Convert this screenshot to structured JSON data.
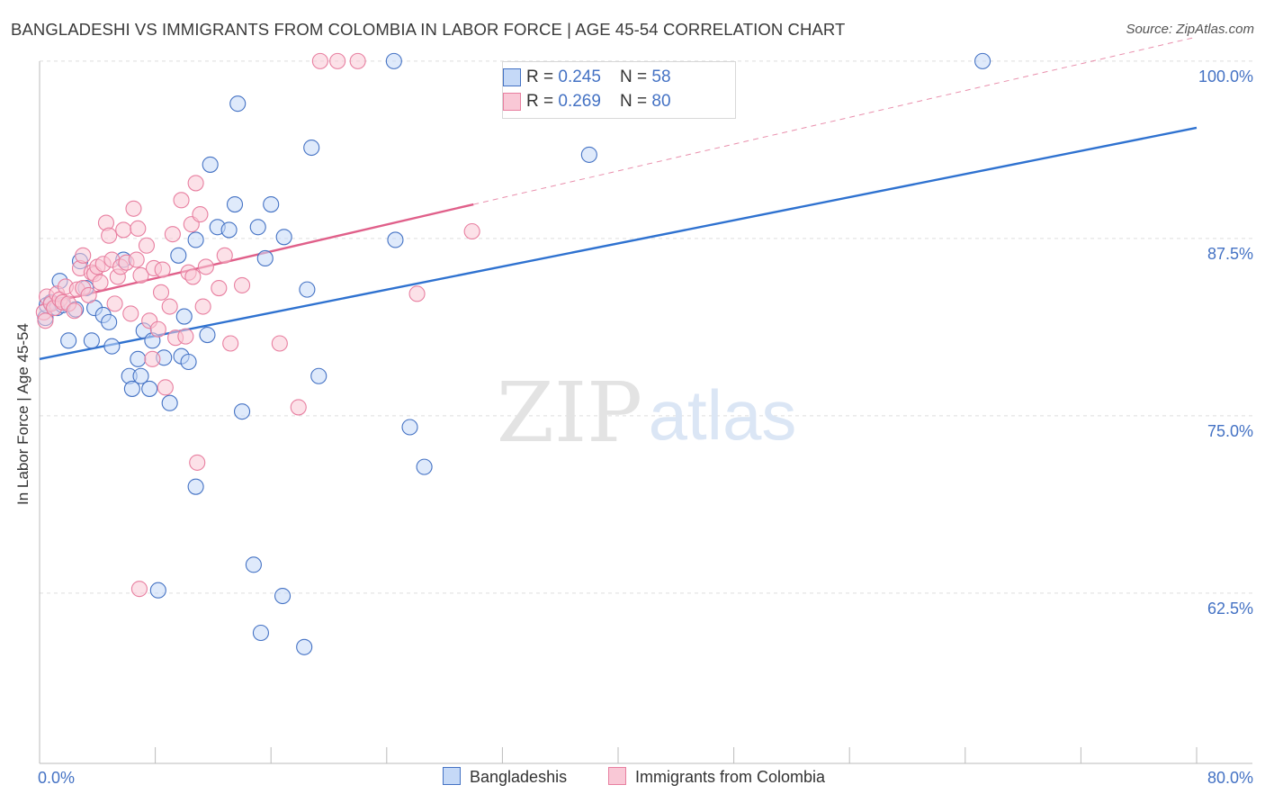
{
  "header": {
    "title": "BANGLADESHI VS IMMIGRANTS FROM COLOMBIA IN LABOR FORCE | AGE 45-54 CORRELATION CHART",
    "source": "Source: ZipAtlas.com"
  },
  "colors": {
    "blue": "#4472c4",
    "blue_fill": "#c5d9f7",
    "blue_line": "#2f72d0",
    "pink": "#e87fa0",
    "pink_fill": "#f9c8d6",
    "pink_line": "#e0608a",
    "axis_text": "#4472c4",
    "grid": "#dddddd"
  },
  "watermark": {
    "zip": "ZIP",
    "atlas": "atlas"
  },
  "legend": {
    "rows": [
      {
        "r_label": "R = ",
        "r_value": "0.245",
        "n_label": "N = ",
        "n_value": "58",
        "series": "blue"
      },
      {
        "r_label": "R = ",
        "r_value": "0.269",
        "n_label": "N = ",
        "n_value": "80",
        "series": "pink"
      }
    ]
  },
  "bottom_legend": [
    "Bangladeshis",
    "Immigrants from Colombia"
  ],
  "chart_data": {
    "type": "scatter",
    "title": "BANGLADESHI VS IMMIGRANTS FROM COLOMBIA IN LABOR FORCE | AGE 45-54 CORRELATION CHART",
    "xlabel": "",
    "ylabel": "In Labor Force | Age 45-54",
    "xlim": [
      0,
      80
    ],
    "ylim": [
      50.5,
      100.5
    ],
    "x_tick_labels": [
      "0.0%",
      "80.0%"
    ],
    "y_ticks": [
      62.5,
      75.0,
      87.5,
      100.0
    ],
    "y_tick_labels": [
      "62.5%",
      "75.0%",
      "87.5%",
      "100.0%"
    ],
    "legend_position": "top-center",
    "series": [
      {
        "name": "Bangladeshis",
        "color": "blue",
        "trend": {
          "x": [
            0,
            80
          ],
          "y": [
            79.0,
            95.3
          ],
          "dashed_extension": false
        },
        "points": [
          [
            0.4,
            81.9
          ],
          [
            0.5,
            82.8
          ],
          [
            0.8,
            83.0
          ],
          [
            1.2,
            82.6
          ],
          [
            1.4,
            84.5
          ],
          [
            1.6,
            82.8
          ],
          [
            2.0,
            80.3
          ],
          [
            2.5,
            82.5
          ],
          [
            2.8,
            85.9
          ],
          [
            3.2,
            84.0
          ],
          [
            3.6,
            80.3
          ],
          [
            3.8,
            82.6
          ],
          [
            4.4,
            82.1
          ],
          [
            4.8,
            81.6
          ],
          [
            5.0,
            79.9
          ],
          [
            5.8,
            86.0
          ],
          [
            6.2,
            77.8
          ],
          [
            6.4,
            76.9
          ],
          [
            6.8,
            79.0
          ],
          [
            7.0,
            77.8
          ],
          [
            7.2,
            81.0
          ],
          [
            7.6,
            76.9
          ],
          [
            7.8,
            80.3
          ],
          [
            8.2,
            62.7
          ],
          [
            8.6,
            79.1
          ],
          [
            9.0,
            75.9
          ],
          [
            9.6,
            86.3
          ],
          [
            9.8,
            79.2
          ],
          [
            10.0,
            82.0
          ],
          [
            10.3,
            78.8
          ],
          [
            10.8,
            87.4
          ],
          [
            10.8,
            70.0
          ],
          [
            11.6,
            80.7
          ],
          [
            11.8,
            92.7
          ],
          [
            12.3,
            88.3
          ],
          [
            13.1,
            88.1
          ],
          [
            13.5,
            89.9
          ],
          [
            13.7,
            97.0
          ],
          [
            14.0,
            75.3
          ],
          [
            14.8,
            64.5
          ],
          [
            15.1,
            88.3
          ],
          [
            15.3,
            59.7
          ],
          [
            15.6,
            86.1
          ],
          [
            16.0,
            89.9
          ],
          [
            16.8,
            62.3
          ],
          [
            16.9,
            87.6
          ],
          [
            18.3,
            58.7
          ],
          [
            18.5,
            83.9
          ],
          [
            18.8,
            93.9
          ],
          [
            19.3,
            77.8
          ],
          [
            24.5,
            100.0
          ],
          [
            24.6,
            87.4
          ],
          [
            25.6,
            74.2
          ],
          [
            26.6,
            71.4
          ],
          [
            38.0,
            93.4
          ],
          [
            65.2,
            100.0
          ]
        ]
      },
      {
        "name": "Immigrants from Colombia",
        "color": "pink",
        "trend": {
          "x": [
            0,
            30
          ],
          "y": [
            82.8,
            89.9
          ],
          "dashed_extension": true,
          "dashed_to": {
            "x": [
              30,
              80
            ],
            "y": [
              89.9,
              101.7
            ]
          }
        },
        "points": [
          [
            0.3,
            82.3
          ],
          [
            0.4,
            81.7
          ],
          [
            0.5,
            83.4
          ],
          [
            0.8,
            82.9
          ],
          [
            1.0,
            82.6
          ],
          [
            1.2,
            83.6
          ],
          [
            1.4,
            83.2
          ],
          [
            1.6,
            83.0
          ],
          [
            1.8,
            84.1
          ],
          [
            2.0,
            82.9
          ],
          [
            2.4,
            82.4
          ],
          [
            2.6,
            83.9
          ],
          [
            2.8,
            85.4
          ],
          [
            3.0,
            84.0
          ],
          [
            3.0,
            86.3
          ],
          [
            3.4,
            83.5
          ],
          [
            3.6,
            85.1
          ],
          [
            3.8,
            85.0
          ],
          [
            4.0,
            85.5
          ],
          [
            4.2,
            84.4
          ],
          [
            4.4,
            85.7
          ],
          [
            4.6,
            88.6
          ],
          [
            4.8,
            87.7
          ],
          [
            5.0,
            86.0
          ],
          [
            5.2,
            82.9
          ],
          [
            5.4,
            84.8
          ],
          [
            5.6,
            85.5
          ],
          [
            5.8,
            88.1
          ],
          [
            6.0,
            85.8
          ],
          [
            6.3,
            82.2
          ],
          [
            6.5,
            89.6
          ],
          [
            6.7,
            86.0
          ],
          [
            6.8,
            88.2
          ],
          [
            6.9,
            62.8
          ],
          [
            7.0,
            84.9
          ],
          [
            7.4,
            87.0
          ],
          [
            7.6,
            81.7
          ],
          [
            7.8,
            79.0
          ],
          [
            7.9,
            85.4
          ],
          [
            8.2,
            81.1
          ],
          [
            8.4,
            83.7
          ],
          [
            8.5,
            85.3
          ],
          [
            8.7,
            77.0
          ],
          [
            9.0,
            82.7
          ],
          [
            9.2,
            87.8
          ],
          [
            9.4,
            80.5
          ],
          [
            9.8,
            90.2
          ],
          [
            10.1,
            80.6
          ],
          [
            10.3,
            85.1
          ],
          [
            10.5,
            88.5
          ],
          [
            10.6,
            84.8
          ],
          [
            10.8,
            91.4
          ],
          [
            10.9,
            71.7
          ],
          [
            11.1,
            89.2
          ],
          [
            11.3,
            82.7
          ],
          [
            11.5,
            85.5
          ],
          [
            12.4,
            84.0
          ],
          [
            12.8,
            86.3
          ],
          [
            13.2,
            80.1
          ],
          [
            14.0,
            84.2
          ],
          [
            16.6,
            80.1
          ],
          [
            17.9,
            75.6
          ],
          [
            19.4,
            100.0
          ],
          [
            20.6,
            100.0
          ],
          [
            22.0,
            100.0
          ],
          [
            26.1,
            83.6
          ],
          [
            29.9,
            88.0
          ]
        ]
      }
    ]
  }
}
